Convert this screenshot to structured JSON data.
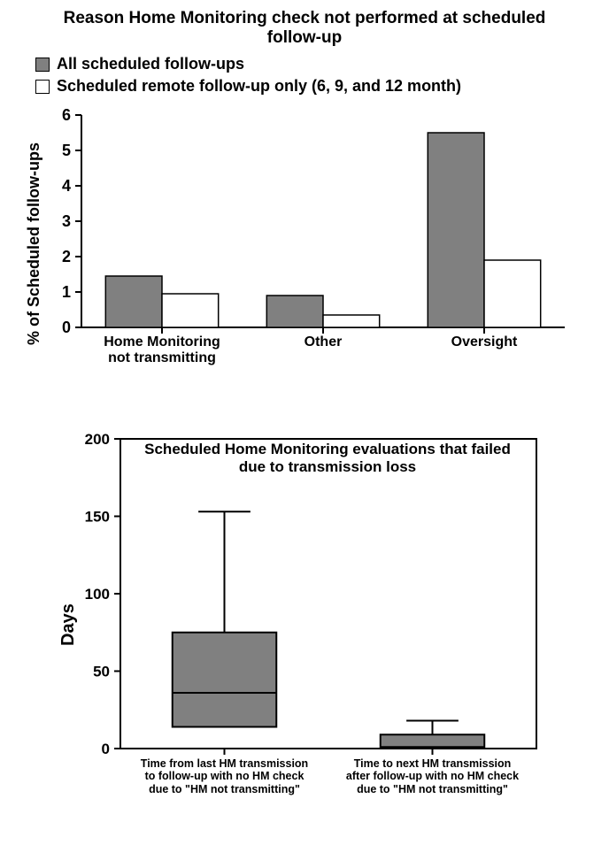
{
  "chart1": {
    "type": "bar",
    "title": "Reason Home Monitoring check not performed at scheduled follow-up",
    "title_fontsize": 19,
    "legend": [
      {
        "label": "All scheduled follow-ups",
        "fill": "#808080",
        "stroke": "#000000"
      },
      {
        "label": "Scheduled remote follow-up only (6, 9, and 12 month)",
        "fill": "#ffffff",
        "stroke": "#000000"
      }
    ],
    "ylabel": "% of Scheduled follow-ups",
    "ylim": [
      0,
      6
    ],
    "yticks": [
      0,
      1,
      2,
      3,
      4,
      5,
      6
    ],
    "categories": [
      "Home Monitoring\nnot transmitting",
      "Other",
      "Oversight"
    ],
    "series": [
      {
        "key": "all",
        "values": [
          1.45,
          0.9,
          5.5
        ],
        "fill": "#808080",
        "stroke": "#000000"
      },
      {
        "key": "remote",
        "values": [
          0.95,
          0.35,
          1.9
        ],
        "fill": "#ffffff",
        "stroke": "#000000"
      }
    ],
    "bar_width": 0.35,
    "axis_color": "#000000",
    "tick_fontsize": 18,
    "label_fontsize": 18,
    "xcat_fontsize": 16
  },
  "chart2": {
    "type": "boxplot",
    "title": "Scheduled Home Monitoring evaluations that failed due to transmission loss",
    "title_fontsize": 17,
    "ylabel": "Days",
    "ylim": [
      0,
      200
    ],
    "yticks": [
      0,
      50,
      100,
      150,
      200
    ],
    "categories": [
      "Time from last HM transmission\nto follow-up with no HM check\ndue to \"HM not transmitting\"",
      "Time to next HM transmission\nafter follow-up with no HM check\ndue to \"HM not transmitting\""
    ],
    "boxes": [
      {
        "q1": 14,
        "median": 36,
        "q3": 75,
        "whisker_low": 14,
        "whisker_high": 153,
        "fill": "#808080",
        "stroke": "#000000"
      },
      {
        "q1": 0.5,
        "median": 1,
        "q3": 9,
        "whisker_low": 0.5,
        "whisker_high": 18,
        "fill": "#808080",
        "stroke": "#000000"
      }
    ],
    "box_width": 0.5,
    "axis_color": "#000000",
    "tick_fontsize": 17,
    "label_fontsize": 20,
    "xcat_fontsize": 12.5
  },
  "colors": {
    "background": "#ffffff",
    "text": "#000000"
  }
}
